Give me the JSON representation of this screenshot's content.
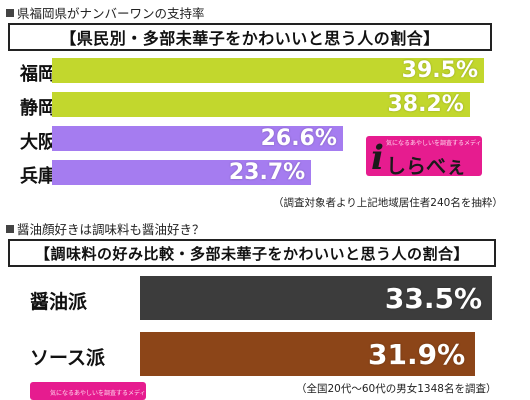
{
  "section1": {
    "caption": "県福岡県がナンバーワンの支持率",
    "title": "【県民別・多部未華子をかわいいと思う人の割合】",
    "note": "（調査対象者より上記地域居住者240名を抽粋）"
  },
  "section2": {
    "caption": "醤油顔好きは調味料も醤油好き？",
    "title": "【調味料の好み比較・多部未華子をかわいいと思う人の割合】",
    "note": "（全国20代～60代の男女1348名を調査）"
  },
  "logo": {
    "tagline": "気になるあやしいを調査するメディア",
    "glyph": "i",
    "word": "しらべぇ"
  },
  "colors": {
    "green": "#c2d72d",
    "purple": "#a57cf0",
    "dark_gray": "#3c3c3c",
    "brown": "#8c4518",
    "logo_pink": "#e61c8f"
  },
  "chart_data": [
    {
      "type": "bar",
      "orientation": "horizontal",
      "title": "【県民別・多部未華子をかわいいと思う人の割合】",
      "categories": [
        "福岡",
        "静岡",
        "大阪",
        "兵庫"
      ],
      "values": [
        39.5,
        38.2,
        26.6,
        23.7
      ],
      "value_labels": [
        "39.5%",
        "38.2%",
        "26.6%",
        "23.7%"
      ],
      "bar_colors": [
        "#c2d72d",
        "#c2d72d",
        "#a57cf0",
        "#a57cf0"
      ],
      "unit": "%",
      "xlim": [
        0,
        39.5
      ],
      "grid": false,
      "legend": "none"
    },
    {
      "type": "bar",
      "orientation": "horizontal",
      "title": "【調味料の好み比較・多部未華子をかわいいと思う人の割合】",
      "categories": [
        "醤油派",
        "ソース派"
      ],
      "values": [
        33.5,
        31.9
      ],
      "value_labels": [
        "33.5%",
        "31.9%"
      ],
      "bar_colors": [
        "#3c3c3c",
        "#8c4518"
      ],
      "unit": "%",
      "xlim": [
        0,
        33.5
      ],
      "grid": false,
      "legend": "none"
    }
  ]
}
